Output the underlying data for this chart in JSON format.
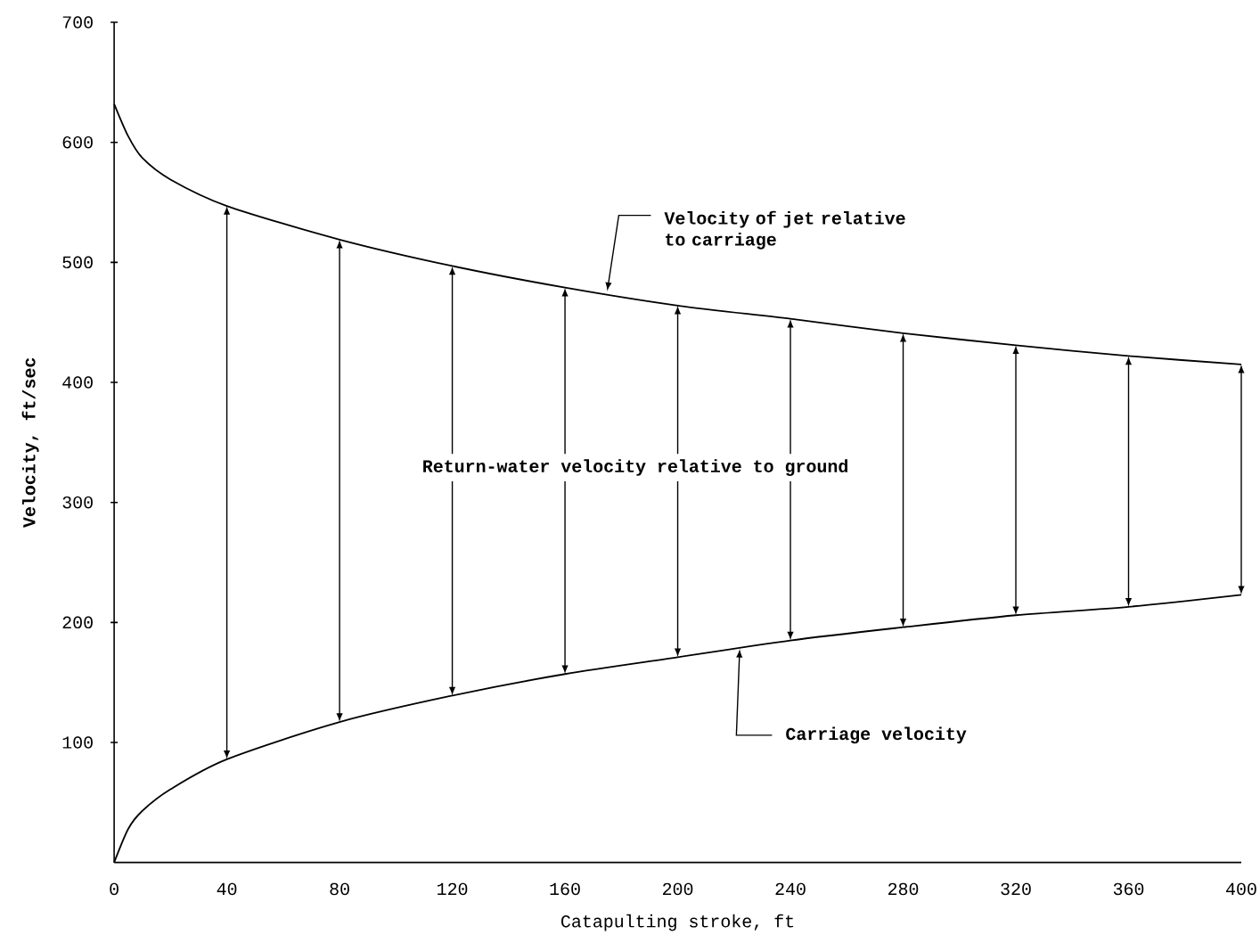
{
  "chart_data": {
    "type": "line",
    "xlabel": "Catapulting stroke, ft",
    "ylabel": "Velocity, ft/sec",
    "xlim": [
      0,
      400
    ],
    "ylim": [
      0,
      700
    ],
    "xticks": [
      0,
      40,
      80,
      120,
      160,
      200,
      240,
      280,
      320,
      360,
      400
    ],
    "yticks": [
      100,
      200,
      300,
      400,
      500,
      600,
      700
    ],
    "grid": false,
    "marker": "none",
    "line_style": "solid",
    "series": [
      {
        "color": "#000000",
        "x": [
          0,
          5,
          10,
          20,
          40,
          80,
          120,
          160,
          200,
          240,
          280,
          320,
          360,
          400
        ],
        "values": [
          632,
          605,
          587,
          569,
          547,
          519,
          497,
          479,
          464,
          453,
          441,
          431,
          422,
          415
        ]
      },
      {
        "color": "#000000",
        "x": [
          0,
          5,
          10,
          20,
          40,
          80,
          120,
          160,
          200,
          240,
          280,
          320,
          360,
          400
        ],
        "values": [
          0,
          28,
          43,
          61,
          86,
          117,
          139,
          157,
          171,
          185,
          196,
          206,
          213,
          223
        ]
      }
    ],
    "annotations": [
      {
        "text": "Velocity of jet relative to carriage",
        "x": 175,
        "y": 476
      },
      "Return-water velocity relative to ground",
      {
        "text": "Carriage velocity",
        "x": 222,
        "y": 178
      }
    ]
  }
}
